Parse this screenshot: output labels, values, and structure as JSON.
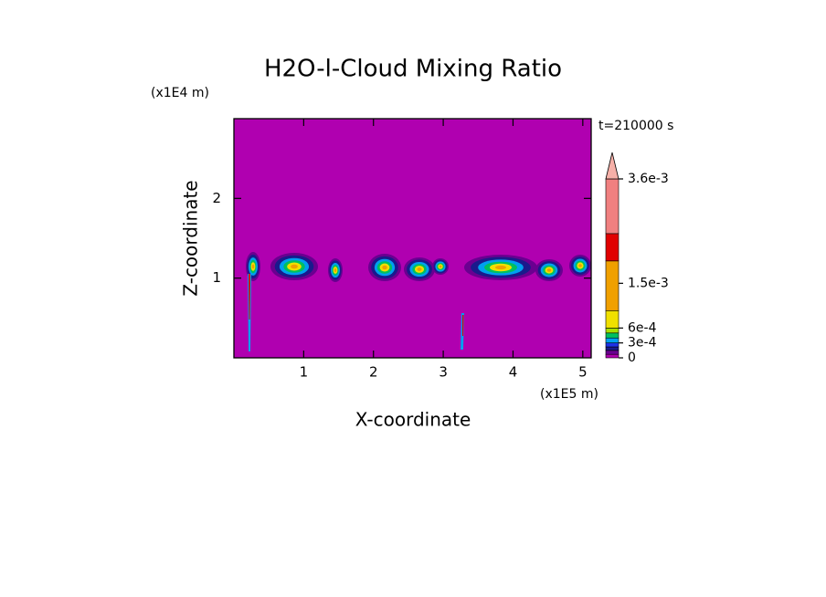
{
  "chart_data": {
    "type": "contour",
    "title": "H2O-l-Cloud Mixing Ratio",
    "x_label": "X-coordinate",
    "y_label": "Z-coordinate",
    "x_scale_label": "(x1E5 m)",
    "y_scale_label": "(x1E4 m)",
    "time_label": "t=210000 s",
    "xlim": [
      0,
      5.12
    ],
    "ylim": [
      0,
      3
    ],
    "xticks": [
      1,
      2,
      3,
      4,
      5
    ],
    "yticks": [
      1,
      2
    ],
    "colorbar": {
      "levels": [
        0,
        7e-05,
        0.00015,
        0.00022,
        0.0003,
        0.0004,
        0.0005,
        0.0006,
        0.00095,
        0.00195,
        0.0025,
        0.0036
      ],
      "colors": [
        "#b000b0",
        "#6a0090",
        "#1a1a8c",
        "#1e32e6",
        "#00a0f0",
        "#00c060",
        "#a8e000",
        "#f0e000",
        "#f0a000",
        "#e00000",
        "#f08080"
      ],
      "extend_color": "#f6b0a8",
      "ticks": [
        {
          "value": 0.0036,
          "label": "3.6e-3"
        },
        {
          "value": 0.0015,
          "label": "1.5e-3"
        },
        {
          "value": 0.0006,
          "label": "6e-4"
        },
        {
          "value": 0.0003,
          "label": "3e-4"
        },
        0
      ]
    }
  }
}
